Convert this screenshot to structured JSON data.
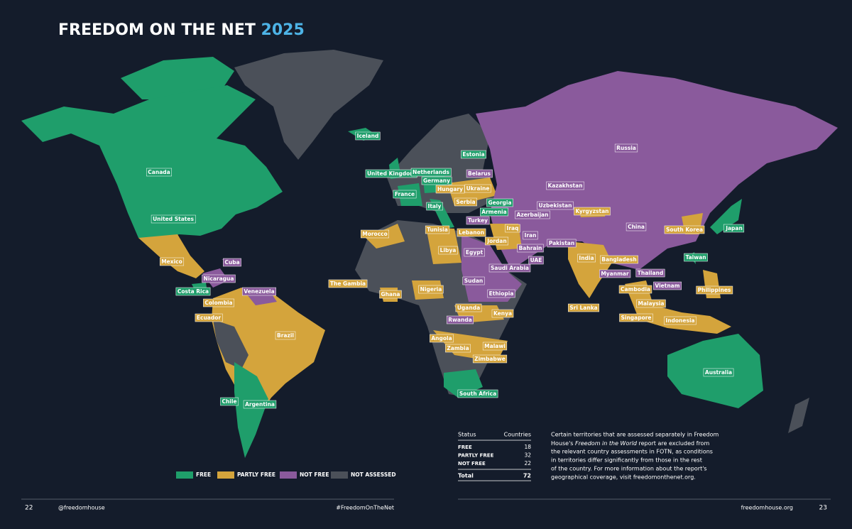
{
  "header": {
    "title": "FREEDOM ON THE NET",
    "year": "2025"
  },
  "legend": [
    {
      "label": "FREE",
      "color": "#1f9e6b",
      "countries": [
        "Iceland",
        "Canada",
        "United States",
        "Costa Rica",
        "Chile",
        "Argentina",
        "United Kingdom",
        "Netherlands",
        "Germany",
        "France",
        "Italy",
        "Estonia",
        "Georgia",
        "Armenia",
        "Japan",
        "Taiwan",
        "South Africa",
        "Australia"
      ]
    },
    {
      "label": "PARTLY FREE",
      "color": "#d4a43c",
      "countries": [
        "Mexico",
        "Colombia",
        "Ecuador",
        "Brazil",
        "The Gambia",
        "Ghana",
        "Nigeria",
        "Morocco",
        "Tunisia",
        "Libya",
        "Lebanon",
        "Jordan",
        "Iraq",
        "Hungary",
        "Serbia",
        "Ukraine",
        "Kyrgyzstan",
        "India",
        "Sri Lanka",
        "Bangladesh",
        "South Korea",
        "Malaysia",
        "Singapore",
        "Indonesia",
        "Philippines",
        "Cambodia",
        "Kenya",
        "Uganda",
        "Angola",
        "Zambia",
        "Malawi",
        "Zimbabwe"
      ]
    },
    {
      "label": "NOT FREE",
      "color": "#8a5a9c",
      "countries": [
        "Cuba",
        "Nicaragua",
        "Venezuela",
        "Belarus",
        "Turkey",
        "Egypt",
        "Sudan",
        "Ethiopia",
        "Rwanda",
        "Russia",
        "Kazakhstan",
        "Uzbekistan",
        "Azerbaijan",
        "Iran",
        "Bahrain",
        "Saudi Arabia",
        "UAE",
        "Pakistan",
        "China",
        "Myanmar",
        "Thailand",
        "Vietnam"
      ]
    },
    {
      "label": "NOT ASSESSED",
      "color": "#4b5059"
    }
  ],
  "table": {
    "header": [
      "Status",
      "Countries"
    ],
    "rows": [
      [
        "FREE",
        "18"
      ],
      [
        "PARTLY FREE",
        "32"
      ],
      [
        "NOT FREE",
        "22"
      ]
    ],
    "total": [
      "Total",
      "72"
    ]
  },
  "note": {
    "line1": "Certain territories that are assessed separately in Freedom",
    "line2": {
      "before": "House's ",
      "italic": "Freedom in the World",
      "after": " report are excluded from"
    },
    "rest": [
      "the relevant country assessments in FOTN, as conditions",
      "in territories differ significantly from those in the rest",
      "of the country. For more information about the report's",
      "geographical coverage, visit freedomonthenet.org."
    ]
  },
  "footer": {
    "page_left": "22",
    "handle": "@freedomhouse",
    "hashtag": "#FreedomOnTheNet",
    "site": "freedomhouse.org",
    "page_right": "23"
  }
}
